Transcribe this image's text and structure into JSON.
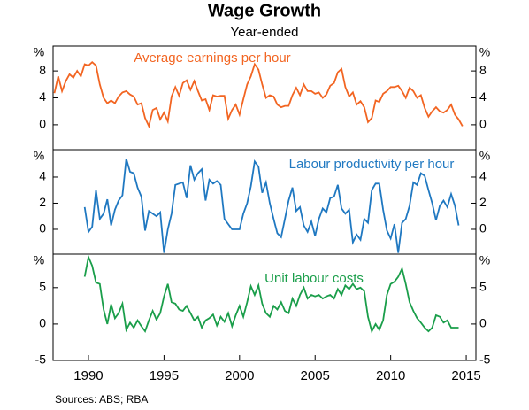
{
  "title": "Wage Growth",
  "subtitle": "Year-ended",
  "source": "Sources: ABS; RBA",
  "chart_data": [
    {
      "type": "line",
      "unit": "%",
      "xlim": [
        1987.66,
        2015.64
      ],
      "ylim": [
        -3.7,
        11.7
      ],
      "yticks": [
        0,
        4,
        8
      ],
      "x": [
        1987.75,
        1988,
        1988.25,
        1988.5,
        1988.75,
        1989,
        1989.25,
        1989.5,
        1989.75,
        1990,
        1990.25,
        1990.5,
        1990.75,
        1991,
        1991.25,
        1991.5,
        1991.75,
        1992,
        1992.25,
        1992.5,
        1992.75,
        1993,
        1993.25,
        1993.5,
        1993.75,
        1994,
        1994.25,
        1994.5,
        1994.75,
        1995,
        1995.25,
        1995.5,
        1995.75,
        1996,
        1996.25,
        1996.5,
        1996.75,
        1997,
        1997.25,
        1997.5,
        1997.75,
        1998,
        1998.25,
        1998.5,
        1998.75,
        1999,
        1999.25,
        1999.5,
        1999.75,
        2000,
        2000.25,
        2000.5,
        2000.75,
        2001,
        2001.25,
        2001.5,
        2001.75,
        2002,
        2002.25,
        2002.5,
        2002.75,
        2003,
        2003.25,
        2003.5,
        2003.75,
        2004,
        2004.25,
        2004.5,
        2004.75,
        2005,
        2005.25,
        2005.5,
        2005.75,
        2006,
        2006.25,
        2006.5,
        2006.75,
        2007,
        2007.25,
        2007.5,
        2007.75,
        2008,
        2008.25,
        2008.5,
        2008.75,
        2009,
        2009.25,
        2009.5,
        2009.75,
        2010,
        2010.25,
        2010.5,
        2010.75,
        2011,
        2011.25,
        2011.5,
        2011.75,
        2012,
        2012.25,
        2012.5,
        2012.75,
        2013,
        2013.25,
        2013.5,
        2013.75,
        2014,
        2014.25,
        2014.5,
        2014.75
      ],
      "series": [
        {
          "name": "Average earnings per hour",
          "color": "#f26522",
          "values": [
            4.7,
            7.2,
            5.0,
            6.5,
            7.5,
            7.0,
            8.0,
            7.2,
            9.0,
            8.8,
            9.3,
            8.8,
            6.0,
            4.0,
            3.2,
            3.6,
            3.2,
            4.2,
            4.8,
            5.0,
            4.5,
            4.2,
            3.0,
            3.2,
            1.0,
            -0.2,
            2.2,
            2.5,
            0.8,
            1.8,
            0.5,
            4.2,
            5.6,
            4.3,
            6.2,
            6.6,
            5.2,
            6.5,
            5.0,
            3.6,
            3.8,
            2.2,
            4.4,
            4.2,
            4.3,
            4.3,
            0.9,
            2.2,
            3.0,
            1.5,
            3.8,
            6.0,
            7.2,
            9.0,
            8.2,
            6.0,
            4.0,
            4.4,
            4.2,
            3.0,
            2.6,
            2.8,
            2.8,
            4.4,
            5.5,
            4.4,
            6.0,
            5.0,
            5.0,
            4.6,
            4.8,
            4.0,
            4.5,
            5.8,
            6.2,
            7.8,
            8.3,
            5.6,
            4.2,
            4.8,
            3.0,
            3.5,
            2.6,
            0.4,
            1.0,
            3.6,
            3.4,
            4.6,
            5.0,
            5.6,
            5.6,
            5.8,
            5.0,
            4.0,
            5.5,
            5.0,
            4.0,
            4.4,
            2.5,
            1.2,
            2.0,
            2.6,
            2.0,
            1.8,
            2.2,
            3.0,
            1.5,
            0.8,
            -0.2
          ]
        }
      ]
    },
    {
      "type": "line",
      "unit": "%",
      "xlim": [
        1987.66,
        2015.64
      ],
      "ylim": [
        -1.9,
        6.1
      ],
      "yticks": [
        0,
        2,
        4
      ],
      "x": [
        1989.75,
        1990,
        1990.25,
        1990.5,
        1990.75,
        1991,
        1991.25,
        1991.5,
        1991.75,
        1992,
        1992.25,
        1992.5,
        1992.75,
        1993,
        1993.25,
        1993.5,
        1993.75,
        1994,
        1994.25,
        1994.5,
        1994.75,
        1995,
        1995.25,
        1995.5,
        1995.75,
        1996,
        1996.25,
        1996.5,
        1996.75,
        1997,
        1997.25,
        1997.5,
        1997.75,
        1998,
        1998.25,
        1998.5,
        1998.75,
        1999,
        1999.25,
        1999.5,
        1999.75,
        2000,
        2000.25,
        2000.5,
        2000.75,
        2001,
        2001.25,
        2001.5,
        2001.75,
        2002,
        2002.25,
        2002.5,
        2002.75,
        2003,
        2003.25,
        2003.5,
        2003.75,
        2004,
        2004.25,
        2004.5,
        2004.75,
        2005,
        2005.25,
        2005.5,
        2005.75,
        2006,
        2006.25,
        2006.5,
        2006.75,
        2007,
        2007.25,
        2007.5,
        2007.75,
        2008,
        2008.25,
        2008.5,
        2008.75,
        2009,
        2009.25,
        2009.5,
        2009.75,
        2010,
        2010.25,
        2010.5,
        2010.75,
        2011,
        2011.25,
        2011.5,
        2011.75,
        2012,
        2012.25,
        2012.5,
        2012.75,
        2013,
        2013.25,
        2013.5,
        2013.75,
        2014,
        2014.25,
        2014.5
      ],
      "series": [
        {
          "name": "Labour productivity per hour",
          "color": "#1f78c1",
          "values": [
            1.7,
            -0.2,
            0.2,
            3.0,
            0.8,
            1.2,
            2.3,
            0.3,
            1.5,
            2.2,
            2.6,
            5.4,
            4.4,
            4.3,
            3.2,
            2.5,
            -0.1,
            1.4,
            1.2,
            1.0,
            1.3,
            -1.8,
            0.0,
            1.2,
            3.4,
            3.5,
            3.6,
            2.4,
            4.9,
            3.8,
            4.3,
            4.6,
            2.2,
            3.8,
            3.5,
            3.7,
            3.4,
            0.8,
            0.4,
            0.0,
            0.0,
            0.0,
            1.2,
            2.0,
            3.3,
            5.2,
            4.8,
            2.8,
            3.6,
            2.0,
            0.8,
            -0.3,
            -0.6,
            0.8,
            2.2,
            3.2,
            1.4,
            1.7,
            0.3,
            -0.2,
            0.6,
            -0.5,
            0.8,
            1.6,
            1.3,
            2.4,
            2.5,
            3.4,
            1.6,
            1.2,
            1.5,
            -1.0,
            -0.4,
            -0.8,
            0.8,
            0.5,
            3.0,
            3.5,
            3.5,
            1.5,
            -0.1,
            -0.7,
            0.4,
            -1.8,
            0.5,
            0.8,
            1.8,
            3.6,
            3.4,
            4.3,
            4.1,
            3.0,
            2.0,
            0.7,
            1.8,
            2.2,
            1.7,
            2.7,
            1.8,
            0.3
          ]
        }
      ]
    },
    {
      "type": "line",
      "unit": "%",
      "xlim": [
        1987.66,
        2015.64
      ],
      "ylim": [
        -5,
        9.6
      ],
      "yticks": [
        -5,
        0,
        5
      ],
      "xticks": [
        1990,
        1995,
        2000,
        2005,
        2010,
        2015
      ],
      "x": [
        1989.75,
        1990,
        1990.25,
        1990.5,
        1990.75,
        1991,
        1991.25,
        1991.5,
        1991.75,
        1992,
        1992.25,
        1992.5,
        1992.75,
        1993,
        1993.25,
        1993.5,
        1993.75,
        1994,
        1994.25,
        1994.5,
        1994.75,
        1995,
        1995.25,
        1995.5,
        1995.75,
        1996,
        1996.25,
        1996.5,
        1996.75,
        1997,
        1997.25,
        1997.5,
        1997.75,
        1998,
        1998.25,
        1998.5,
        1998.75,
        1999,
        1999.25,
        1999.5,
        1999.75,
        2000,
        2000.25,
        2000.5,
        2000.75,
        2001,
        2001.25,
        2001.5,
        2001.75,
        2002,
        2002.25,
        2002.5,
        2002.75,
        2003,
        2003.25,
        2003.5,
        2003.75,
        2004,
        2004.25,
        2004.5,
        2004.75,
        2005,
        2005.25,
        2005.5,
        2005.75,
        2006,
        2006.25,
        2006.5,
        2006.75,
        2007,
        2007.25,
        2007.5,
        2007.75,
        2008,
        2008.25,
        2008.5,
        2008.75,
        2009,
        2009.25,
        2009.5,
        2009.75,
        2010,
        2010.25,
        2010.5,
        2010.75,
        2011,
        2011.25,
        2011.5,
        2011.75,
        2012,
        2012.25,
        2012.5,
        2012.75,
        2013,
        2013.25,
        2013.5,
        2013.75,
        2014,
        2014.25,
        2014.5
      ],
      "series": [
        {
          "name": "Unit labour costs",
          "color": "#1a9e4a",
          "values": [
            6.5,
            9.2,
            8.0,
            5.7,
            5.5,
            2.0,
            0.0,
            2.7,
            0.8,
            1.5,
            2.8,
            -0.8,
            0.2,
            -0.5,
            0.5,
            -0.3,
            -1.0,
            0.5,
            1.8,
            0.6,
            1.5,
            3.8,
            5.5,
            3.0,
            2.8,
            2.0,
            1.8,
            2.5,
            1.5,
            0.5,
            1.0,
            -0.5,
            0.5,
            0.8,
            1.3,
            -0.2,
            1.0,
            0.3,
            1.5,
            -0.3,
            1.2,
            2.5,
            1.0,
            3.0,
            5.2,
            4.0,
            5.3,
            2.8,
            1.5,
            1.0,
            2.5,
            2.0,
            3.0,
            1.8,
            1.5,
            3.5,
            2.5,
            4.0,
            5.0,
            3.5,
            4.0,
            3.8,
            4.0,
            3.5,
            3.8,
            4.0,
            3.5,
            4.8,
            4.0,
            5.3,
            4.8,
            5.5,
            4.8,
            5.0,
            4.5,
            1.0,
            -1.0,
            0.0,
            -0.8,
            0.5,
            4.0,
            5.5,
            5.8,
            6.5,
            7.6,
            5.5,
            3.0,
            1.8,
            0.8,
            0.2,
            -0.5,
            -1.0,
            -0.5,
            1.2,
            1.0,
            0.2,
            0.5,
            -0.5,
            -0.5,
            -0.5
          ]
        }
      ]
    }
  ]
}
